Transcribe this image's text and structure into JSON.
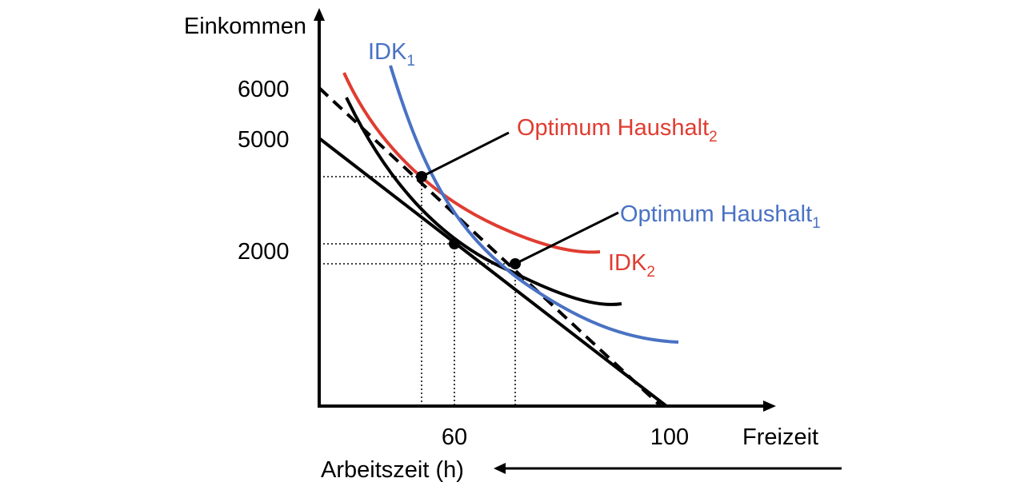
{
  "chart_data": {
    "type": "diagram",
    "axes": {
      "y_label": "Einkommen",
      "x_label": "Freizeit",
      "secondary_x_label": "Arbeitszeit (h)",
      "y_ticks": [
        "6000",
        "5000",
        "2000"
      ],
      "x_ticks": [
        "60",
        "100"
      ]
    },
    "curves": [
      {
        "name": "IDK",
        "sub": "1",
        "color": "#4A72C4"
      },
      {
        "name": "IDK",
        "sub": "2",
        "color": "#E03C31"
      }
    ],
    "annotations": [
      {
        "text": "Optimum Haushalt",
        "sub": "2",
        "color": "#E03C31"
      },
      {
        "text": "Optimum Haushalt",
        "sub": "1",
        "color": "#4A72C4"
      }
    ],
    "lines": [
      {
        "name": "budget-line-5000",
        "style": "solid",
        "from": [
          0,
          5000
        ],
        "to": [
          100,
          0
        ]
      },
      {
        "name": "budget-line-6000",
        "style": "dashed",
        "from": [
          0,
          6000
        ],
        "to": [
          100,
          0
        ]
      }
    ],
    "points": [
      {
        "name": "optimum-haushalt-2",
        "color": "#000000"
      },
      {
        "name": "optimum-original",
        "color": "#000000"
      },
      {
        "name": "optimum-haushalt-1",
        "color": "#000000"
      }
    ]
  }
}
